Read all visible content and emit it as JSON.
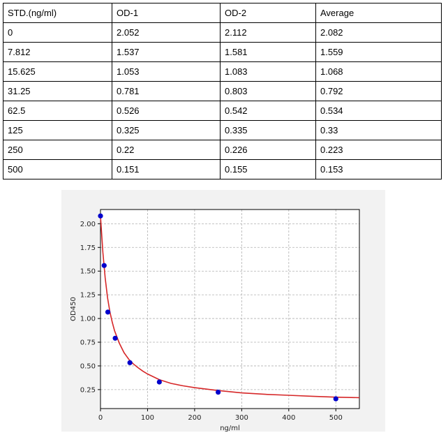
{
  "table": {
    "headers": [
      "STD.(ng/ml)",
      "OD-1",
      "OD-2",
      "Average"
    ],
    "rows": [
      [
        "0",
        "2.052",
        "2.112",
        "2.082"
      ],
      [
        "7.812",
        "1.537",
        "1.581",
        "1.559"
      ],
      [
        "15.625",
        "1.053",
        "1.083",
        "1.068"
      ],
      [
        "31.25",
        "0.781",
        "0.803",
        "0.792"
      ],
      [
        "62.5",
        "0.526",
        "0.542",
        "0.534"
      ],
      [
        "125",
        "0.325",
        "0.335",
        "0.33"
      ],
      [
        "250",
        "0.22",
        "0.226",
        "0.223"
      ],
      [
        "500",
        "0.151",
        "0.155",
        "0.153"
      ]
    ]
  },
  "chart_data": {
    "type": "scatter",
    "title": "",
    "xlabel": "ng/ml",
    "ylabel": "OD450",
    "xlim": [
      0,
      550
    ],
    "ylim": [
      0.05,
      2.15
    ],
    "xticks": [
      0,
      100,
      200,
      300,
      400,
      500
    ],
    "yticks": [
      0.25,
      0.5,
      0.75,
      1.0,
      1.25,
      1.5,
      1.75,
      2.0
    ],
    "ytick_labels": [
      "0.25",
      "0.50",
      "0.75",
      "1.00",
      "1.25",
      "1.50",
      "1.75",
      "2.00"
    ],
    "grid": true,
    "series": [
      {
        "kind": "points",
        "color": "#0000cc",
        "x": [
          0,
          7.812,
          15.625,
          31.25,
          62.5,
          125,
          250,
          500
        ],
        "y": [
          2.082,
          1.559,
          1.068,
          0.792,
          0.534,
          0.33,
          0.223,
          0.153
        ]
      },
      {
        "kind": "fit-curve",
        "color": "#d62728",
        "x": [
          0,
          5,
          10,
          15,
          20,
          25,
          30,
          40,
          50,
          60,
          70,
          80,
          90,
          100,
          125,
          150,
          175,
          200,
          250,
          300,
          350,
          400,
          450,
          500,
          550
        ],
        "y": [
          2.08,
          1.7,
          1.43,
          1.22,
          1.07,
          0.96,
          0.87,
          0.74,
          0.64,
          0.57,
          0.52,
          0.48,
          0.445,
          0.415,
          0.355,
          0.315,
          0.29,
          0.27,
          0.24,
          0.215,
          0.2,
          0.19,
          0.18,
          0.17,
          0.165
        ]
      }
    ]
  }
}
